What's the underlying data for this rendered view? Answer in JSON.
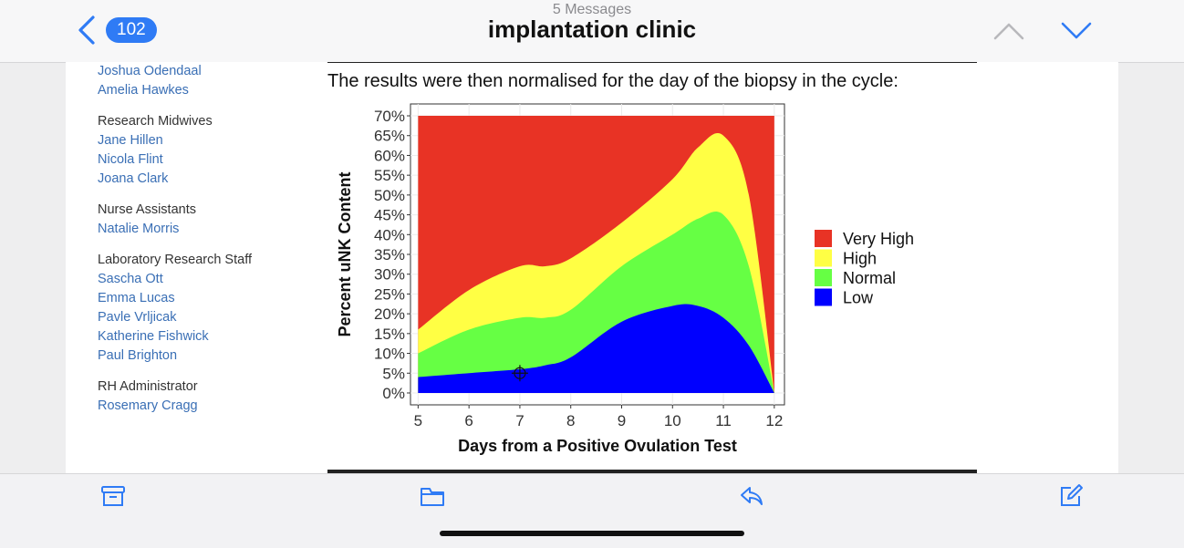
{
  "header": {
    "back_count": "102",
    "messages_count": "5 Messages",
    "title": "implantation clinic"
  },
  "sidebar": {
    "groups": [
      {
        "heading": "",
        "names": [
          "Joshua Odendaal",
          "Amelia Hawkes"
        ]
      },
      {
        "heading": "Research Midwives",
        "names": [
          "Jane Hillen",
          "Nicola Flint",
          "Joana Clark"
        ]
      },
      {
        "heading": "Nurse Assistants",
        "names": [
          "Natalie Morris"
        ]
      },
      {
        "heading": "Laboratory Research Staff",
        "names": [
          "Sascha Ott",
          "Emma Lucas",
          "Pavle Vrljicak",
          "Katherine Fishwick",
          "Paul Brighton"
        ]
      },
      {
        "heading": "RH Administrator",
        "names": [
          "Rosemary Cragg"
        ]
      }
    ]
  },
  "body": {
    "intro": "The results were then normalised for the day of the biopsy in the cycle:"
  },
  "chart_data": {
    "type": "area",
    "stacked": true,
    "xlabel": "Days from a Positive Ovulation Test",
    "ylabel": "Percent uNK Content",
    "x_ticks": [
      "5",
      "6",
      "7",
      "8",
      "9",
      "10",
      "11",
      "12"
    ],
    "y_ticks": [
      "0%",
      "5%",
      "10%",
      "15%",
      "20%",
      "25%",
      "30%",
      "35%",
      "40%",
      "45%",
      "50%",
      "55%",
      "60%",
      "65%",
      "70%"
    ],
    "xlim": [
      4.85,
      12.2
    ],
    "ylim": [
      -3,
      73
    ],
    "legend_position": "right",
    "x": [
      5,
      6,
      7,
      7.5,
      8,
      9,
      10,
      10.5,
      11,
      11.5,
      12
    ],
    "series": [
      {
        "name": "Low",
        "color": "#0000ff",
        "values": [
          4,
          5,
          6,
          7,
          9,
          18,
          22,
          22,
          19,
          12,
          0
        ]
      },
      {
        "name": "Normal",
        "color": "#66ff44",
        "values": [
          10,
          16,
          19,
          19,
          21,
          32,
          40,
          44,
          45,
          32,
          0
        ]
      },
      {
        "name": "High",
        "color": "#ffff44",
        "values": [
          16,
          26,
          32,
          32,
          34,
          43,
          54,
          62,
          65,
          50,
          0
        ]
      },
      {
        "name": "Very High",
        "color": "#e83325",
        "values": [
          70,
          70,
          70,
          70,
          70,
          70,
          70,
          70,
          70,
          70,
          70
        ]
      }
    ],
    "legend_order": [
      "Very High",
      "High",
      "Normal",
      "Low"
    ]
  }
}
